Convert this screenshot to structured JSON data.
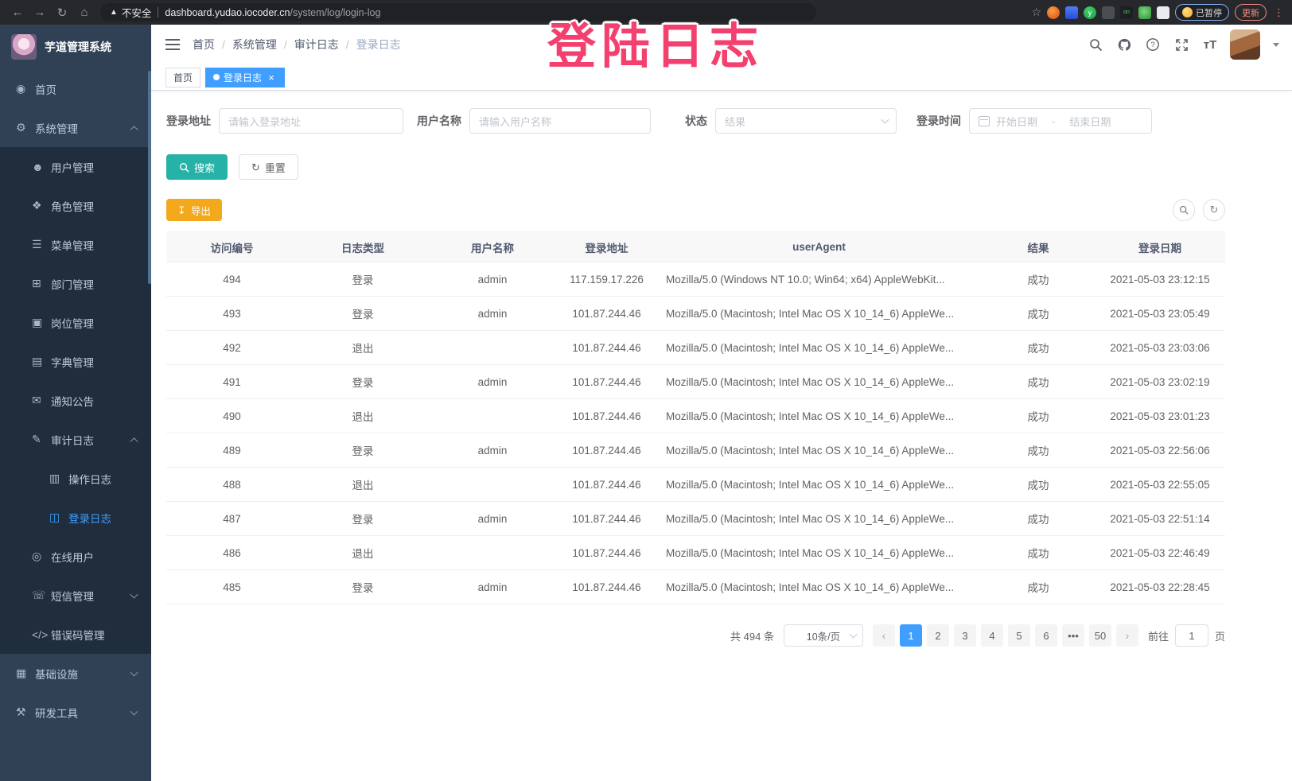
{
  "browser": {
    "security_label": "不安全",
    "url_host": "dashboard.yudao.iocoder.cn",
    "url_path": "/system/log/login-log",
    "paused_badge": "已暂停",
    "update_button": "更新"
  },
  "overlay": {
    "text": "登陆日志",
    "color": "#f4406e"
  },
  "sidebar": {
    "logo_title": "芋道管理系统",
    "items": [
      {
        "label": "首页",
        "icon": "home-icon",
        "level": 1,
        "arrow": null,
        "active": false
      },
      {
        "label": "系统管理",
        "icon": "gear-icon",
        "level": 1,
        "arrow": "up",
        "active": false
      },
      {
        "label": "用户管理",
        "icon": "user-icon",
        "level": 2,
        "arrow": null,
        "active": false
      },
      {
        "label": "角色管理",
        "icon": "role-icon",
        "level": 2,
        "arrow": null,
        "active": false
      },
      {
        "label": "菜单管理",
        "icon": "menu-list-icon",
        "level": 2,
        "arrow": null,
        "active": false
      },
      {
        "label": "部门管理",
        "icon": "org-tree-icon",
        "level": 2,
        "arrow": null,
        "active": false
      },
      {
        "label": "岗位管理",
        "icon": "post-icon",
        "level": 2,
        "arrow": null,
        "active": false
      },
      {
        "label": "字典管理",
        "icon": "dict-icon",
        "level": 2,
        "arrow": null,
        "active": false
      },
      {
        "label": "通知公告",
        "icon": "notice-icon",
        "level": 2,
        "arrow": null,
        "active": false
      },
      {
        "label": "审计日志",
        "icon": "audit-log-icon",
        "level": 2,
        "arrow": "up",
        "active": false
      },
      {
        "label": "操作日志",
        "icon": "operate-log-icon",
        "level": 3,
        "arrow": null,
        "active": false
      },
      {
        "label": "登录日志",
        "icon": "login-log-icon",
        "level": 3,
        "arrow": null,
        "active": true
      },
      {
        "label": "在线用户",
        "icon": "online-user-icon",
        "level": 2,
        "arrow": null,
        "active": false
      },
      {
        "label": "短信管理",
        "icon": "sms-icon",
        "level": 2,
        "arrow": "down",
        "active": false
      },
      {
        "label": "错误码管理",
        "icon": "error-code-icon",
        "level": 2,
        "arrow": null,
        "active": false
      },
      {
        "label": "基础设施",
        "icon": "infra-icon",
        "level": 1,
        "arrow": "down",
        "active": false
      },
      {
        "label": "研发工具",
        "icon": "dev-tool-icon",
        "level": 1,
        "arrow": "down",
        "active": false
      }
    ]
  },
  "navbar": {
    "breadcrumb": [
      "首页",
      "系统管理",
      "审计日志",
      "登录日志"
    ]
  },
  "tags": [
    {
      "label": "首页",
      "active": false,
      "closable": false
    },
    {
      "label": "登录日志",
      "active": true,
      "closable": true
    }
  ],
  "filters": {
    "address_label": "登录地址",
    "address_placeholder": "请输入登录地址",
    "username_label": "用户名称",
    "username_placeholder": "请输入用户名称",
    "status_label": "状态",
    "status_placeholder": "结果",
    "time_label": "登录时间",
    "date_start_placeholder": "开始日期",
    "date_separator": "-",
    "date_end_placeholder": "结束日期",
    "search_label": "搜索",
    "reset_label": "重置"
  },
  "toolbar": {
    "export_label": "导出"
  },
  "table": {
    "headers": [
      "访问编号",
      "日志类型",
      "用户名称",
      "登录地址",
      "userAgent",
      "结果",
      "登录日期"
    ],
    "rows": [
      {
        "id": "494",
        "type": "登录",
        "user": "admin",
        "ip": "117.159.17.226",
        "agent": "Mozilla/5.0 (Windows NT 10.0; Win64; x64) AppleWebKit...",
        "result": "成功",
        "date": "2021-05-03 23:12:15"
      },
      {
        "id": "493",
        "type": "登录",
        "user": "admin",
        "ip": "101.87.244.46",
        "agent": "Mozilla/5.0 (Macintosh; Intel Mac OS X 10_14_6) AppleWe...",
        "result": "成功",
        "date": "2021-05-03 23:05:49"
      },
      {
        "id": "492",
        "type": "退出",
        "user": "",
        "ip": "101.87.244.46",
        "agent": "Mozilla/5.0 (Macintosh; Intel Mac OS X 10_14_6) AppleWe...",
        "result": "成功",
        "date": "2021-05-03 23:03:06"
      },
      {
        "id": "491",
        "type": "登录",
        "user": "admin",
        "ip": "101.87.244.46",
        "agent": "Mozilla/5.0 (Macintosh; Intel Mac OS X 10_14_6) AppleWe...",
        "result": "成功",
        "date": "2021-05-03 23:02:19"
      },
      {
        "id": "490",
        "type": "退出",
        "user": "",
        "ip": "101.87.244.46",
        "agent": "Mozilla/5.0 (Macintosh; Intel Mac OS X 10_14_6) AppleWe...",
        "result": "成功",
        "date": "2021-05-03 23:01:23"
      },
      {
        "id": "489",
        "type": "登录",
        "user": "admin",
        "ip": "101.87.244.46",
        "agent": "Mozilla/5.0 (Macintosh; Intel Mac OS X 10_14_6) AppleWe...",
        "result": "成功",
        "date": "2021-05-03 22:56:06"
      },
      {
        "id": "488",
        "type": "退出",
        "user": "",
        "ip": "101.87.244.46",
        "agent": "Mozilla/5.0 (Macintosh; Intel Mac OS X 10_14_6) AppleWe...",
        "result": "成功",
        "date": "2021-05-03 22:55:05"
      },
      {
        "id": "487",
        "type": "登录",
        "user": "admin",
        "ip": "101.87.244.46",
        "agent": "Mozilla/5.0 (Macintosh; Intel Mac OS X 10_14_6) AppleWe...",
        "result": "成功",
        "date": "2021-05-03 22:51:14"
      },
      {
        "id": "486",
        "type": "退出",
        "user": "",
        "ip": "101.87.244.46",
        "agent": "Mozilla/5.0 (Macintosh; Intel Mac OS X 10_14_6) AppleWe...",
        "result": "成功",
        "date": "2021-05-03 22:46:49"
      },
      {
        "id": "485",
        "type": "登录",
        "user": "admin",
        "ip": "101.87.244.46",
        "agent": "Mozilla/5.0 (Macintosh; Intel Mac OS X 10_14_6) AppleWe...",
        "result": "成功",
        "date": "2021-05-03 22:28:45"
      }
    ]
  },
  "pagination": {
    "total_text": "共 494 条",
    "page_size": "10条/页",
    "prev_label": "‹",
    "next_label": "›",
    "pages": [
      "1",
      "2",
      "3",
      "4",
      "5",
      "6",
      "•••",
      "50"
    ],
    "active_page": "1",
    "goto_label": "前往",
    "goto_value": "1",
    "goto_suffix": "页"
  },
  "colors": {
    "primary": "#409eff",
    "search_button": "#26b2a6",
    "export_button": "#f4a81b",
    "sidebar_bg": "#304156",
    "submenu_bg": "#1f2d3d",
    "overlay_pink": "#f4406e"
  }
}
